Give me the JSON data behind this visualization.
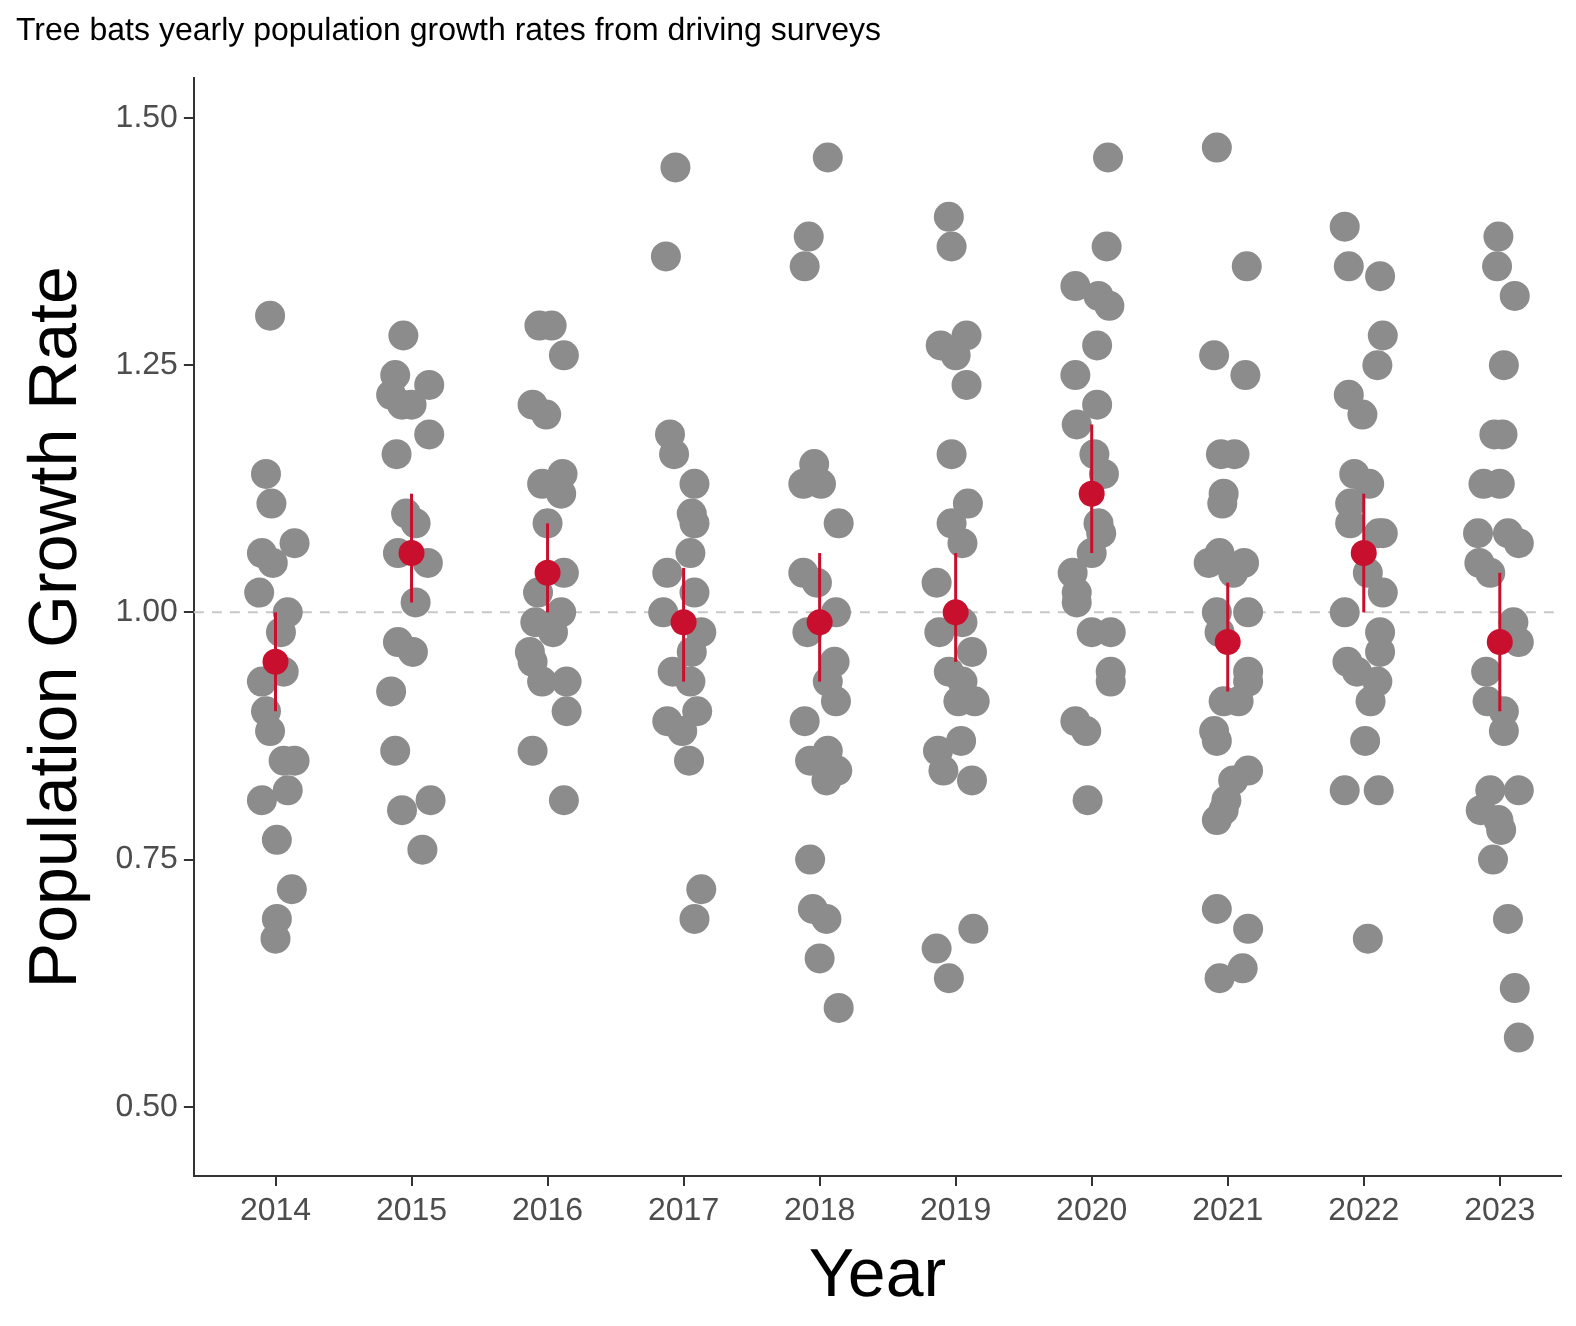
{
  "chart_data": {
    "type": "scatter",
    "title": "Tree bats yearly population growth rates from driving surveys",
    "xlabel": "Year",
    "ylabel": "Population Growth Rate",
    "xlim": [
      2013.4,
      2023.45
    ],
    "xticks": [
      2014,
      2015,
      2016,
      2017,
      2018,
      2019,
      2020,
      2021,
      2022,
      2023
    ],
    "ylim": [
      0.43,
      1.54
    ],
    "yticks": [
      {
        "value": 0.5,
        "label": "0.50"
      },
      {
        "value": 0.75,
        "label": "0.75"
      },
      {
        "value": 1,
        "label": "1.00"
      },
      {
        "value": 1.25,
        "label": "1.25"
      },
      {
        "value": 1.5,
        "label": "1.50"
      }
    ],
    "grid": false,
    "legend": false,
    "marker": "circle",
    "ref_lines": [
      {
        "axis": "y",
        "value": 1,
        "color": "#c8c8c8",
        "line_style": "dashed"
      }
    ],
    "series": [
      {
        "type": "scatter",
        "color": "#8c8c8c",
        "x": [
          2013.96,
          2013.93,
          2013.97,
          2014.14,
          2013.9,
          2013.98,
          2013.88,
          2014.09,
          2014.04,
          2013.9,
          2014.06,
          2013.93,
          2013.96,
          2014.06,
          2014.14,
          2014.09,
          2013.9,
          2014.01,
          2014.12,
          2014.01,
          2014.0,
          2014.94,
          2014.88,
          2015.13,
          2014.85,
          2014.93,
          2015.0,
          2015.13,
          2014.89,
          2014.96,
          2015.03,
          2014.9,
          2015.12,
          2015.03,
          2014.9,
          2015.01,
          2014.85,
          2014.88,
          2014.93,
          2015.14,
          2015.08,
          2015.94,
          2016.03,
          2016.12,
          2015.89,
          2015.99,
          2016.11,
          2015.96,
          2016.1,
          2016.0,
          2016.12,
          2015.93,
          2016.1,
          2015.91,
          2016.04,
          2015.87,
          2015.89,
          2015.96,
          2016.14,
          2016.14,
          2015.89,
          2016.12,
          2016.94,
          2016.87,
          2016.9,
          2016.93,
          2017.08,
          2017.06,
          2017.08,
          2017.05,
          2016.88,
          2017.08,
          2016.85,
          2017.13,
          2017.06,
          2016.92,
          2017.05,
          2017.1,
          2016.88,
          2016.99,
          2017.04,
          2017.13,
          2017.08,
          2018.06,
          2017.92,
          2017.89,
          2017.96,
          2017.88,
          2018.01,
          2018.14,
          2017.88,
          2017.98,
          2018.12,
          2017.91,
          2018.11,
          2018.06,
          2018.12,
          2017.89,
          2018.06,
          2017.93,
          2018.13,
          2018.05,
          2017.93,
          2017.95,
          2018.05,
          2018.0,
          2018.14,
          2018.95,
          2018.97,
          2018.89,
          2019.08,
          2019.0,
          2019.08,
          2018.97,
          2019.09,
          2018.97,
          2019.05,
          2018.86,
          2019.05,
          2018.88,
          2019.12,
          2018.95,
          2019.05,
          2019.02,
          2019.14,
          2019.04,
          2018.87,
          2018.91,
          2019.12,
          2019.13,
          2018.86,
          2018.95,
          2020.12,
          2020.11,
          2019.88,
          2020.05,
          2020.13,
          2020.04,
          2019.88,
          2020.04,
          2019.89,
          2020.02,
          2020.09,
          2020.05,
          2020.07,
          2020.0,
          2019.86,
          2019.89,
          2019.89,
          2020.0,
          2020.14,
          2020.14,
          2020.14,
          2019.88,
          2019.96,
          2019.97,
          2020.92,
          2021.14,
          2020.9,
          2021.13,
          2020.95,
          2021.05,
          2020.97,
          2020.96,
          2020.94,
          2020.86,
          2021.12,
          2021.04,
          2021.15,
          2020.92,
          2020.94,
          2021.15,
          2021.15,
          2020.97,
          2021.08,
          2020.9,
          2020.92,
          2021.15,
          2021.04,
          2020.99,
          2020.97,
          2020.92,
          2020.92,
          2021.15,
          2021.11,
          2020.94,
          2021.86,
          2021.89,
          2022.12,
          2022.14,
          2022.1,
          2021.89,
          2021.99,
          2021.93,
          2022.04,
          2021.9,
          2021.9,
          2022.14,
          2022.11,
          2022.03,
          2022.14,
          2021.86,
          2022.12,
          2022.12,
          2021.88,
          2021.95,
          2022.1,
          2022.05,
          2022.01,
          2021.86,
          2022.11,
          2022.03,
          2022.99,
          2022.98,
          2023.11,
          2023.03,
          2022.96,
          2023.02,
          2022.88,
          2023.0,
          2022.84,
          2023.06,
          2023.14,
          2022.85,
          2022.93,
          2023.1,
          2023.14,
          2022.9,
          2022.91,
          2023.03,
          2023.03,
          2022.93,
          2023.14,
          2022.86,
          2022.99,
          2023.01,
          2022.95,
          2023.06,
          2023.11,
          2023.14
        ],
        "values": [
          1.3,
          1.14,
          1.11,
          1.07,
          1.06,
          1.05,
          1.02,
          1.0,
          0.98,
          0.93,
          0.94,
          0.9,
          0.88,
          0.85,
          0.85,
          0.82,
          0.81,
          0.77,
          0.72,
          0.69,
          0.67,
          1.28,
          1.24,
          1.23,
          1.22,
          1.21,
          1.21,
          1.18,
          1.16,
          1.1,
          1.09,
          1.06,
          1.05,
          1.01,
          0.97,
          0.96,
          0.92,
          0.86,
          0.8,
          0.81,
          0.76,
          1.29,
          1.29,
          1.26,
          1.21,
          1.2,
          1.14,
          1.13,
          1.12,
          1.09,
          1.04,
          1.02,
          1.0,
          0.99,
          0.98,
          0.96,
          0.95,
          0.93,
          0.93,
          0.9,
          0.86,
          0.81,
          1.45,
          1.36,
          1.18,
          1.16,
          1.13,
          1.1,
          1.09,
          1.06,
          1.04,
          1.02,
          1.0,
          0.98,
          0.96,
          0.94,
          0.93,
          0.9,
          0.89,
          0.88,
          0.85,
          0.72,
          0.69,
          1.46,
          1.38,
          1.35,
          1.15,
          1.13,
          1.13,
          1.09,
          1.04,
          1.03,
          1.0,
          0.98,
          0.95,
          0.93,
          0.91,
          0.89,
          0.86,
          0.85,
          0.84,
          0.83,
          0.75,
          0.7,
          0.69,
          0.65,
          0.6,
          1.4,
          1.37,
          1.27,
          1.28,
          1.26,
          1.23,
          1.16,
          1.11,
          1.09,
          1.07,
          1.03,
          0.99,
          0.98,
          0.96,
          0.94,
          0.93,
          0.91,
          0.91,
          0.87,
          0.86,
          0.84,
          0.83,
          0.68,
          0.66,
          0.63,
          1.46,
          1.37,
          1.33,
          1.32,
          1.31,
          1.27,
          1.24,
          1.21,
          1.19,
          1.16,
          1.14,
          1.09,
          1.08,
          1.06,
          1.04,
          1.02,
          1.01,
          0.98,
          0.98,
          0.94,
          0.93,
          0.89,
          0.88,
          0.81,
          1.47,
          1.35,
          1.26,
          1.24,
          1.16,
          1.16,
          1.12,
          1.11,
          1.06,
          1.05,
          1.05,
          1.04,
          1.0,
          1.0,
          0.98,
          0.94,
          0.93,
          0.91,
          0.91,
          0.88,
          0.87,
          0.84,
          0.83,
          0.81,
          0.8,
          0.79,
          0.7,
          0.68,
          0.64,
          0.63,
          1.39,
          1.35,
          1.34,
          1.28,
          1.25,
          1.22,
          1.2,
          1.14,
          1.13,
          1.11,
          1.09,
          1.08,
          1.08,
          1.04,
          1.02,
          1.0,
          0.98,
          0.96,
          0.95,
          0.94,
          0.93,
          0.91,
          0.87,
          0.82,
          0.82,
          0.67,
          1.38,
          1.35,
          1.32,
          1.25,
          1.18,
          1.18,
          1.13,
          1.13,
          1.08,
          1.08,
          1.07,
          1.05,
          1.04,
          0.99,
          0.97,
          0.94,
          0.91,
          0.9,
          0.88,
          0.82,
          0.82,
          0.8,
          0.79,
          0.78,
          0.75,
          0.69,
          0.62,
          0.57
        ]
      },
      {
        "type": "scatter",
        "color": "#c8102e",
        "x": [
          2014,
          2015,
          2016,
          2017,
          2018,
          2019,
          2020,
          2021,
          2022,
          2023
        ],
        "values": [
          0.95,
          1.06,
          1.04,
          0.99,
          0.99,
          1.0,
          1.12,
          0.97,
          1.06,
          0.97
        ],
        "errors": [
          [
            0.9,
            1.0
          ],
          [
            1.01,
            1.12
          ],
          [
            1.0,
            1.09
          ],
          [
            0.93,
            1.045
          ],
          [
            0.93,
            1.06
          ],
          [
            0.95,
            1.06
          ],
          [
            1.06,
            1.19
          ],
          [
            0.92,
            1.03
          ],
          [
            1.0,
            1.12
          ],
          [
            0.9,
            1.04
          ]
        ]
      }
    ]
  }
}
